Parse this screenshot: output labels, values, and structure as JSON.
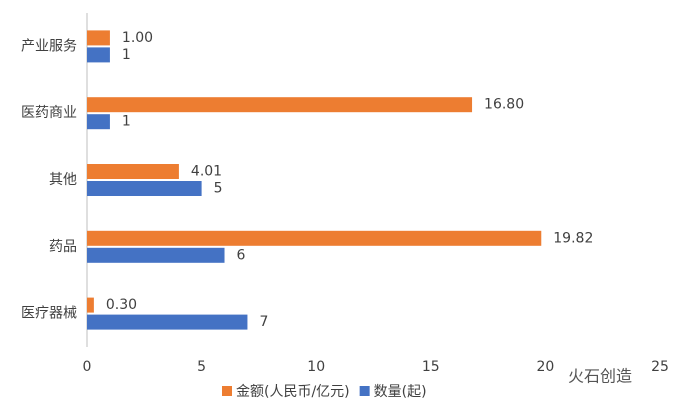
{
  "chart_data": {
    "type": "bar",
    "orientation": "horizontal",
    "categories": [
      "产业服务",
      "医药商业",
      "其他",
      "药品",
      "医疗器械"
    ],
    "series": [
      {
        "name": "金额(人民币/亿元)",
        "color": "#ed7d31",
        "values": [
          1.0,
          16.8,
          4.01,
          19.82,
          0.3
        ],
        "value_labels": [
          "1.00",
          "16.80",
          "4.01",
          "19.82",
          "0.30"
        ]
      },
      {
        "name": "数量(起)",
        "color": "#4472c4",
        "values": [
          1,
          1,
          5,
          6,
          7
        ]
      }
    ],
    "xlim": [
      0,
      25
    ],
    "xticks": [
      0,
      5,
      10,
      15,
      20,
      25
    ],
    "grid": false,
    "legend": "bottom",
    "watermark": "火石创造"
  }
}
